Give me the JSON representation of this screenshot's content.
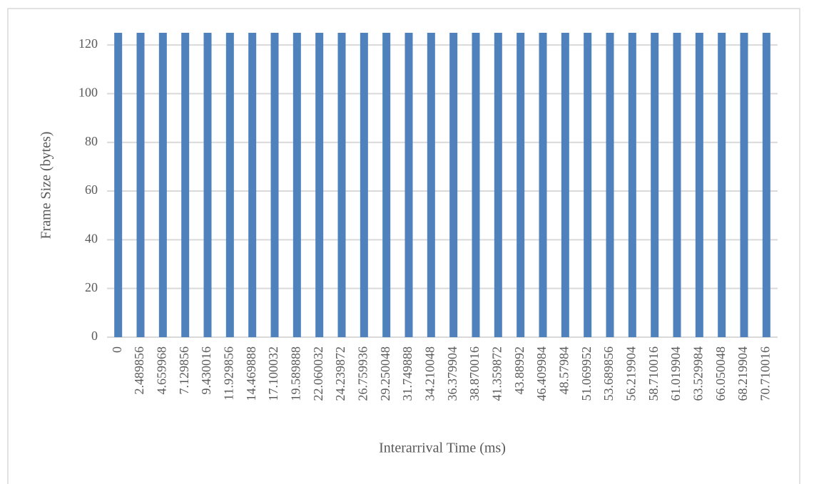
{
  "chart_data": {
    "type": "bar",
    "x_label": "Interarrival Time (ms)",
    "y_label": "Frame Size (bytes)",
    "categories": [
      "0",
      "2.489856",
      "4.659968",
      "7.129856",
      "9.430016",
      "11.929856",
      "14.469888",
      "17.100032",
      "19.589888",
      "22.060032",
      "24.239872",
      "26.759936",
      "29.250048",
      "31.749888",
      "34.210048",
      "36.379904",
      "38.870016",
      "41.359872",
      "43.88992",
      "46.409984",
      "48.57984",
      "51.069952",
      "53.689856",
      "56.219904",
      "58.710016",
      "61.019904",
      "63.529984",
      "66.050048",
      "68.219904",
      "70.710016"
    ],
    "values": [
      125,
      125,
      125,
      125,
      125,
      125,
      125,
      125,
      125,
      125,
      125,
      125,
      125,
      125,
      125,
      125,
      125,
      125,
      125,
      125,
      125,
      125,
      125,
      125,
      125,
      125,
      125,
      125,
      125,
      125
    ],
    "color": "#4f81bd",
    "ylim": [
      0,
      125
    ],
    "yticks": [
      0,
      20,
      40,
      60,
      80,
      100,
      120
    ],
    "grid": true
  }
}
